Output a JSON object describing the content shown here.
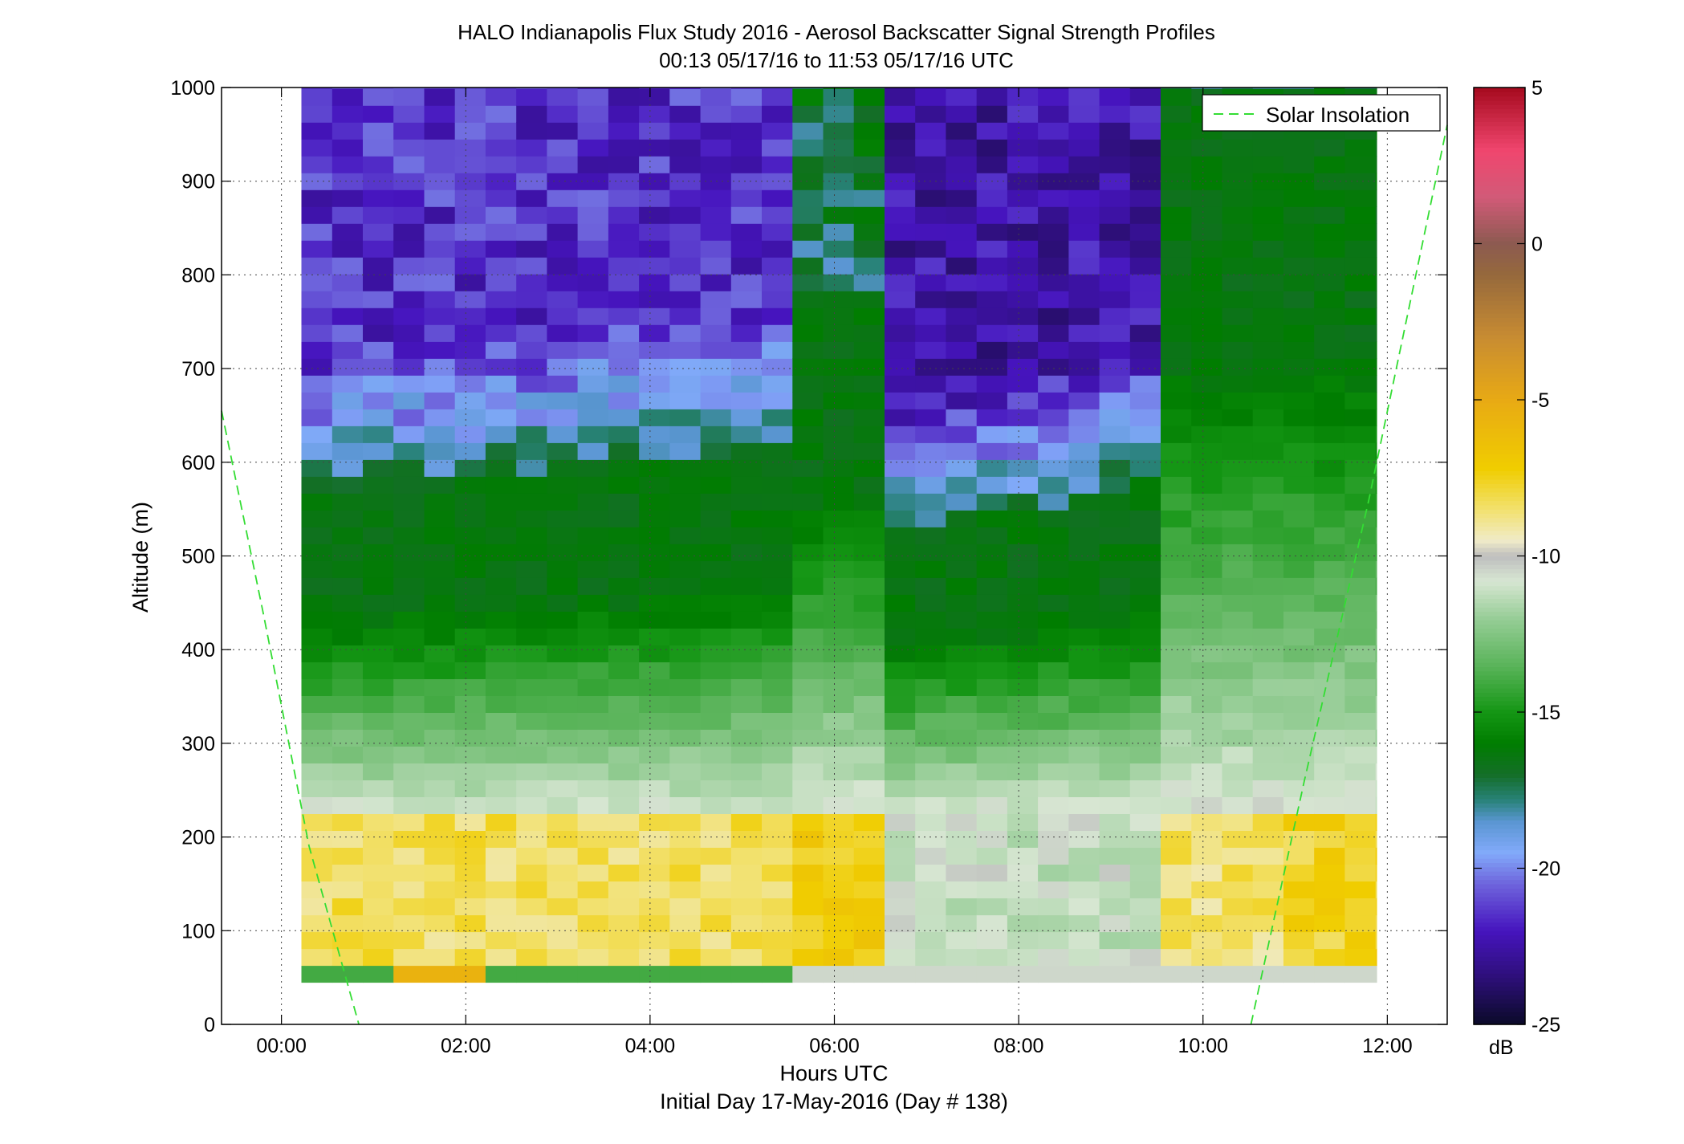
{
  "chart_data": {
    "type": "heatmap",
    "title": "HALO Indianapolis Flux Study 2016 - Aerosol Backscatter Signal Strength Profiles",
    "subtitle": "00:13 05/17/16 to 11:53 05/17/16  UTC",
    "xlabel": "Hours UTC",
    "xlabel2": "Initial Day 17-May-2016 (Day # 138)",
    "ylabel": "Altitude (m)",
    "xlim": [
      -0.65,
      12.65
    ],
    "ylim": [
      0,
      1000
    ],
    "x_ticks": [
      0,
      2,
      4,
      6,
      8,
      10,
      12
    ],
    "x_tick_labels": [
      "00:00",
      "02:00",
      "04:00",
      "06:00",
      "08:00",
      "10:00",
      "12:00"
    ],
    "y_ticks": [
      0,
      100,
      200,
      300,
      400,
      500,
      600,
      700,
      800,
      900,
      1000
    ],
    "y_tick_labels": [
      "0",
      "100",
      "200",
      "300",
      "400",
      "500",
      "600",
      "700",
      "800",
      "900",
      "1000"
    ],
    "grid": true,
    "colorbar": {
      "label": "dB",
      "range": [
        -25,
        5
      ],
      "ticks": [
        5,
        0,
        -5,
        -10,
        -15,
        -20,
        -25
      ],
      "tick_labels": [
        "5",
        "0",
        "-5",
        "-10",
        "-15",
        "-20",
        "-25"
      ]
    },
    "time_range_hours": [
      0.217,
      11.883
    ],
    "altitude_range_m": [
      45,
      1000
    ],
    "time_bin_hours": 0.333,
    "altitude_bin_m": 18,
    "column_times_utc": [
      "00:13",
      "00:33",
      "00:53",
      "01:13",
      "01:33",
      "01:53",
      "02:13",
      "02:33",
      "02:53",
      "03:13",
      "03:33",
      "03:53",
      "04:13",
      "04:33",
      "04:53",
      "05:13",
      "05:33",
      "05:53",
      "06:13",
      "06:33",
      "06:53",
      "07:13",
      "07:33",
      "07:53",
      "08:13",
      "08:33",
      "08:53",
      "09:13",
      "09:33",
      "09:53",
      "10:13",
      "10:33",
      "10:53",
      "11:13",
      "11:33",
      "11:53"
    ],
    "profiles_summary_db": [
      {
        "time": "00:13",
        "near_surface": -11,
        "below_200m": -10,
        "mid_300_500m": -15,
        "above_700m": -21
      },
      {
        "time": "03:00",
        "near_surface": -15,
        "below_200m": -8.5,
        "mid_300_500m": -15.5,
        "above_700m": -22.5
      },
      {
        "time": "06:00",
        "near_surface": -10,
        "below_200m": -7.5,
        "mid_300_500m": -14,
        "above_700m": -16
      },
      {
        "time": "07:40",
        "near_surface": -12,
        "below_200m": -11,
        "mid_300_500m": -16,
        "above_700m": -23
      },
      {
        "time": "09:53",
        "near_surface": -10,
        "below_200m": -8.5,
        "mid_300_500m": -16,
        "above_700m": -16
      },
      {
        "time": "11:33",
        "near_surface": -8,
        "below_200m": -7.5,
        "mid_300_500m": -12,
        "above_700m": -16
      }
    ],
    "series": [
      {
        "name": "Solar Insolation",
        "style": "dashed",
        "color": "#33dd33"
      }
    ],
    "legend_position": "top-right"
  }
}
